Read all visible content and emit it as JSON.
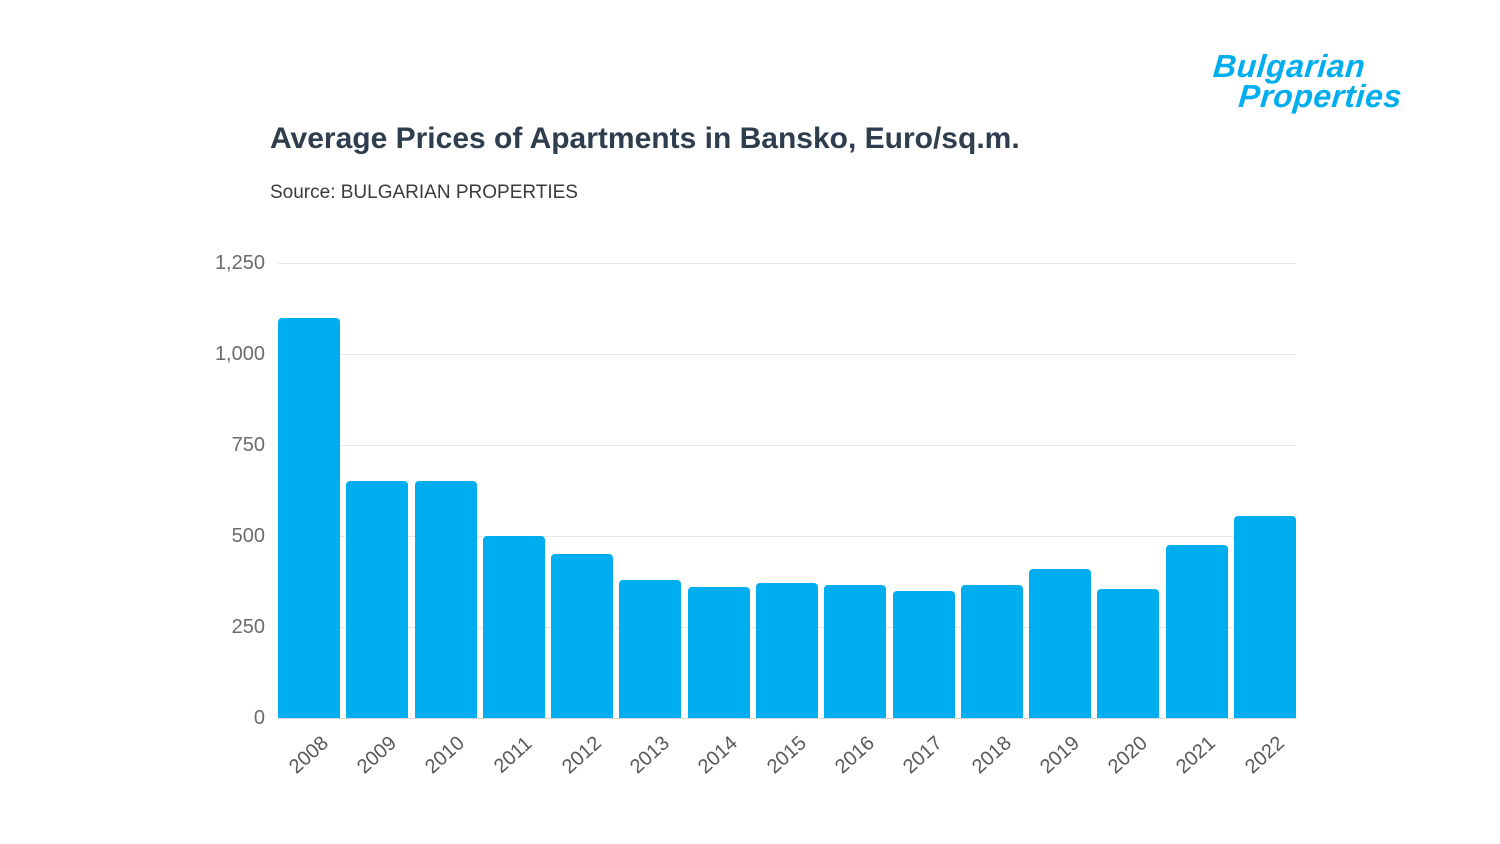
{
  "logo": {
    "line1": "Bulgarian",
    "line2": "Properties"
  },
  "chart_data": {
    "type": "bar",
    "title": "Average Prices of Apartments in Bansko, Euro/sq.m.",
    "source": "Source: BULGARIAN PROPERTIES",
    "categories": [
      "2008",
      "2009",
      "2010",
      "2011",
      "2012",
      "2013",
      "2014",
      "2015",
      "2016",
      "2017",
      "2018",
      "2019",
      "2020",
      "2021",
      "2022"
    ],
    "values": [
      1100,
      650,
      650,
      500,
      450,
      380,
      360,
      370,
      365,
      350,
      365,
      410,
      355,
      475,
      555
    ],
    "xlabel": "",
    "ylabel": "",
    "ylim": [
      0,
      1250
    ],
    "yticks": [
      1250,
      1000,
      750,
      500,
      250,
      0
    ],
    "ytick_labels": [
      "1,250",
      "1,000",
      "750",
      "500",
      "250",
      "0"
    ],
    "grid": true,
    "legend": false,
    "bar_color": "#00AEEF",
    "background": "#FFFFFF",
    "title_color": "#2e3e4e"
  }
}
